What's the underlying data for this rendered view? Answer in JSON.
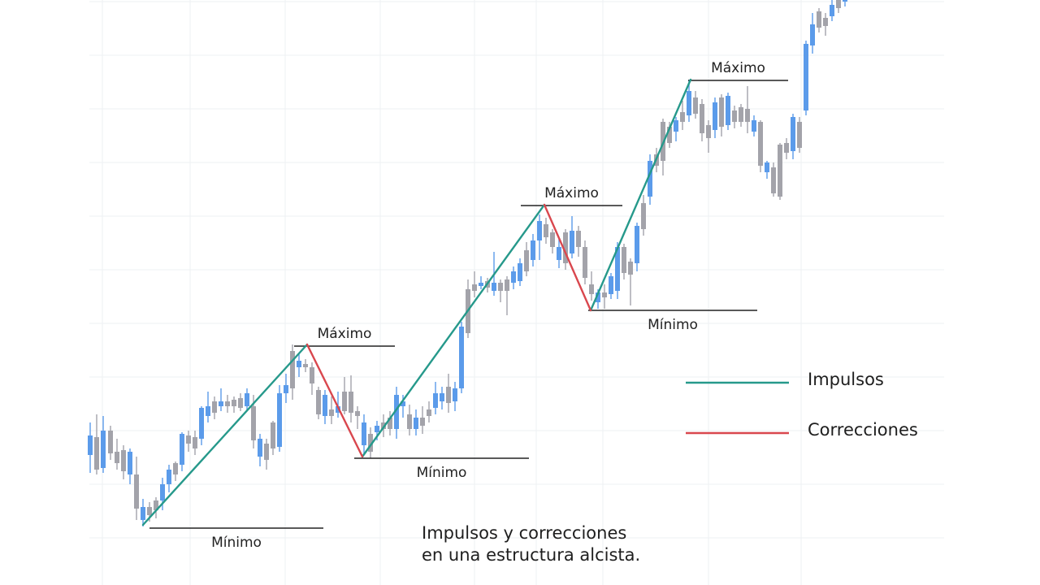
{
  "chart_data": {
    "type": "candlestick",
    "title": "",
    "caption": [
      "Impulsos y correcciones",
      "en una estructura alcista."
    ],
    "grid": true,
    "legend": {
      "placement": "right",
      "entries": [
        {
          "label": "Impulsos",
          "color": "#26998b"
        },
        {
          "label": "Correcciones",
          "color": "#d9474e"
        }
      ]
    },
    "colors": {
      "bull": "#5b9bea",
      "bear": "#a3a3aa",
      "impulse": "#26998b",
      "correction": "#d9474e",
      "level": "#222222",
      "grid": "#eef0f3"
    },
    "y_range": [
      0,
      720
    ],
    "candles": [
      [
        111,
        520,
        536,
        560,
        582
      ],
      [
        119,
        510,
        538,
        578,
        584
      ],
      [
        127,
        512,
        530,
        576,
        582
      ],
      [
        136,
        524,
        530,
        558,
        566
      ],
      [
        144,
        540,
        556,
        570,
        578
      ],
      [
        152,
        548,
        554,
        580,
        590
      ],
      [
        160,
        552,
        556,
        584,
        596
      ],
      [
        168,
        562,
        584,
        626,
        640
      ],
      [
        176,
        614,
        624,
        640,
        648
      ],
      [
        184,
        618,
        624,
        634,
        642
      ],
      [
        192,
        612,
        616,
        628,
        638
      ],
      [
        200,
        588,
        596,
        616,
        628
      ],
      [
        208,
        572,
        578,
        596,
        606
      ],
      [
        216,
        568,
        570,
        584,
        592
      ],
      [
        224,
        532,
        534,
        572,
        580
      ],
      [
        232,
        530,
        536,
        546,
        556
      ],
      [
        240,
        530,
        538,
        552,
        560
      ],
      [
        248,
        500,
        502,
        540,
        548
      ],
      [
        256,
        482,
        500,
        512,
        520
      ],
      [
        264,
        488,
        494,
        508,
        516
      ],
      [
        272,
        478,
        494,
        500,
        506
      ],
      [
        280,
        486,
        494,
        500,
        508
      ],
      [
        288,
        488,
        492,
        500,
        508
      ],
      [
        296,
        484,
        490,
        502,
        506
      ],
      [
        304,
        478,
        484,
        500,
        506
      ],
      [
        312,
        486,
        500,
        542,
        552
      ],
      [
        320,
        534,
        540,
        562,
        574
      ],
      [
        328,
        540,
        546,
        566,
        578
      ],
      [
        336,
        518,
        520,
        552,
        560
      ],
      [
        344,
        474,
        484,
        550,
        556
      ],
      [
        352,
        460,
        474,
        484,
        496
      ],
      [
        360,
        424,
        432,
        478,
        492
      ],
      [
        368,
        436,
        444,
        452,
        464
      ],
      [
        376,
        442,
        448,
        452,
        458
      ],
      [
        384,
        446,
        452,
        472,
        486
      ],
      [
        392,
        476,
        480,
        510,
        516
      ],
      [
        400,
        480,
        486,
        512,
        522
      ],
      [
        408,
        488,
        504,
        512,
        522
      ],
      [
        416,
        482,
        500,
        508,
        514
      ],
      [
        424,
        464,
        482,
        506,
        510
      ],
      [
        432,
        462,
        482,
        508,
        520
      ],
      [
        440,
        500,
        506,
        512,
        528
      ],
      [
        448,
        510,
        520,
        548,
        560
      ],
      [
        456,
        526,
        534,
        556,
        564
      ],
      [
        464,
        518,
        524,
        532,
        542
      ],
      [
        472,
        510,
        520,
        528,
        538
      ],
      [
        480,
        506,
        514,
        528,
        536
      ],
      [
        488,
        476,
        486,
        528,
        540
      ],
      [
        496,
        486,
        494,
        500,
        514
      ],
      [
        504,
        498,
        510,
        528,
        536
      ],
      [
        512,
        504,
        514,
        528,
        536
      ],
      [
        520,
        500,
        514,
        524,
        534
      ],
      [
        528,
        494,
        504,
        512,
        520
      ],
      [
        536,
        470,
        484,
        502,
        510
      ],
      [
        544,
        476,
        484,
        494,
        504
      ],
      [
        552,
        460,
        476,
        496,
        508
      ],
      [
        560,
        470,
        478,
        494,
        506
      ],
      [
        568,
        396,
        402,
        478,
        484
      ],
      [
        576,
        344,
        356,
        410,
        416
      ],
      [
        584,
        334,
        350,
        358,
        366
      ],
      [
        592,
        340,
        348,
        352,
        356
      ],
      [
        600,
        342,
        346,
        354,
        360
      ],
      [
        608,
        310,
        348,
        358,
        364
      ],
      [
        616,
        344,
        348,
        358,
        372
      ],
      [
        624,
        340,
        344,
        358,
        388
      ],
      [
        632,
        328,
        334,
        348,
        356
      ],
      [
        640,
        318,
        324,
        346,
        352
      ],
      [
        648,
        298,
        308,
        334,
        340
      ],
      [
        656,
        288,
        296,
        320,
        328
      ],
      [
        664,
        264,
        272,
        296,
        320
      ],
      [
        672,
        268,
        276,
        292,
        300
      ],
      [
        680,
        282,
        286,
        304,
        312
      ],
      [
        688,
        294,
        304,
        320,
        330
      ],
      [
        696,
        282,
        286,
        324,
        332
      ],
      [
        704,
        266,
        284,
        312,
        318
      ],
      [
        712,
        278,
        284,
        304,
        316
      ],
      [
        720,
        296,
        304,
        342,
        350
      ],
      [
        728,
        334,
        350,
        362,
        370
      ],
      [
        736,
        356,
        360,
        372,
        380
      ],
      [
        744,
        350,
        360,
        366,
        380
      ],
      [
        752,
        336,
        340,
        362,
        368
      ],
      [
        760,
        298,
        304,
        358,
        368
      ],
      [
        768,
        300,
        304,
        336,
        344
      ],
      [
        776,
        318,
        322,
        338,
        376
      ],
      [
        784,
        274,
        278,
        324,
        334
      ],
      [
        792,
        240,
        250,
        282,
        290
      ],
      [
        800,
        190,
        198,
        242,
        252
      ],
      [
        808,
        182,
        190,
        204,
        212
      ],
      [
        816,
        146,
        150,
        198,
        216
      ],
      [
        824,
        150,
        156,
        176,
        182
      ],
      [
        832,
        144,
        148,
        162,
        174
      ],
      [
        840,
        124,
        138,
        150,
        160
      ],
      [
        848,
        98,
        112,
        142,
        150
      ],
      [
        856,
        112,
        120,
        140,
        146
      ],
      [
        864,
        122,
        128,
        164,
        174
      ],
      [
        872,
        148,
        154,
        170,
        188
      ],
      [
        880,
        120,
        126,
        160,
        170
      ],
      [
        888,
        116,
        120,
        156,
        168
      ],
      [
        896,
        114,
        118,
        154,
        160
      ],
      [
        904,
        130,
        136,
        150,
        158
      ],
      [
        912,
        128,
        132,
        150,
        156
      ],
      [
        920,
        106,
        134,
        150,
        164
      ],
      [
        928,
        142,
        148,
        162,
        168
      ],
      [
        936,
        148,
        150,
        204,
        212
      ],
      [
        944,
        198,
        200,
        212,
        220
      ],
      [
        952,
        200,
        206,
        238,
        242
      ],
      [
        960,
        176,
        178,
        242,
        246
      ],
      [
        968,
        170,
        176,
        188,
        196
      ],
      [
        976,
        140,
        144,
        186,
        196
      ],
      [
        984,
        144,
        150,
        182,
        188
      ],
      [
        992,
        50,
        54,
        136,
        142
      ],
      [
        1000,
        16,
        30,
        56,
        66
      ],
      [
        1008,
        10,
        14,
        34,
        40
      ],
      [
        1016,
        16,
        22,
        32,
        44
      ],
      [
        1024,
        -2,
        6,
        20,
        26
      ],
      [
        1032,
        -6,
        0,
        10,
        16
      ],
      [
        1040,
        -10,
        -4,
        2,
        8
      ]
    ],
    "impulse_segments": [
      [
        [
          176,
          646
        ],
        [
          378,
          424
        ]
      ],
      [
        [
          446,
          562
        ],
        [
          670,
          252
        ]
      ],
      [
        [
          727,
          382
        ],
        [
          850,
          98
        ]
      ]
    ],
    "correction_segments": [
      [
        [
          378,
          424
        ],
        [
          446,
          562
        ]
      ],
      [
        [
          670,
          252
        ],
        [
          727,
          382
        ]
      ]
    ],
    "levels": [
      {
        "x1": 184,
        "x2": 398,
        "y": 650,
        "label": "Mínimo",
        "label_pos": "below"
      },
      {
        "x1": 362,
        "x2": 486,
        "y": 426,
        "label": "Máximo",
        "label_pos": "above"
      },
      {
        "x1": 436,
        "x2": 651,
        "y": 564,
        "label": "Mínimo",
        "label_pos": "below"
      },
      {
        "x1": 641,
        "x2": 766,
        "y": 253,
        "label": "Máximo",
        "label_pos": "above"
      },
      {
        "x1": 724,
        "x2": 932,
        "y": 382,
        "label": "Mínimo",
        "label_pos": "below"
      },
      {
        "x1": 847,
        "x2": 970,
        "y": 99,
        "label": "Máximo",
        "label_pos": "above"
      }
    ]
  }
}
